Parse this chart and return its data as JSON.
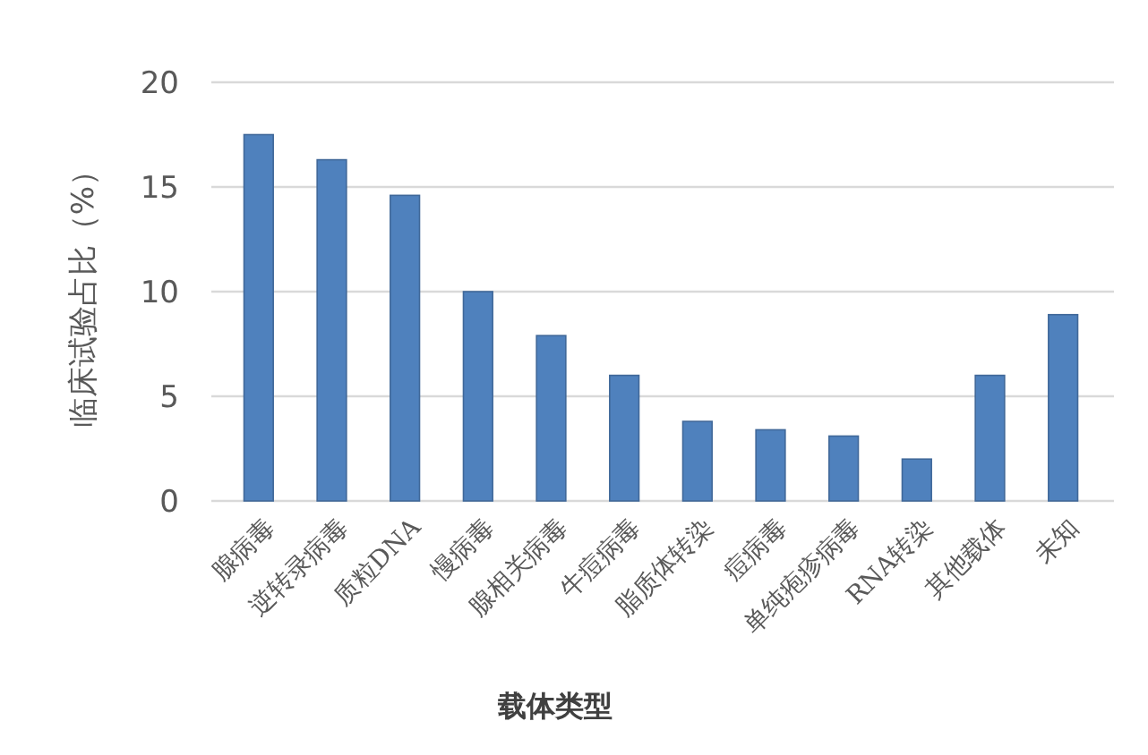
{
  "chart_data": {
    "type": "bar",
    "xlabel": "载体类型",
    "ylabel": "临床试验占比（%）",
    "categories": [
      "腺病毒",
      "逆转录病毒",
      "质粒DNA",
      "慢病毒",
      "腺相关病毒",
      "牛痘病毒",
      "脂质体转染",
      "痘病毒",
      "单纯疱疹病毒",
      "RNA转染",
      "其他载体",
      "未知"
    ],
    "values": [
      17.5,
      16.3,
      14.6,
      10.0,
      7.9,
      6.0,
      3.8,
      3.4,
      3.1,
      2.0,
      6.0,
      8.9
    ],
    "color": "#4f81bd",
    "ylim": [
      0,
      20
    ],
    "yticks": [
      0,
      5,
      10,
      15,
      20
    ],
    "grid": "y"
  }
}
